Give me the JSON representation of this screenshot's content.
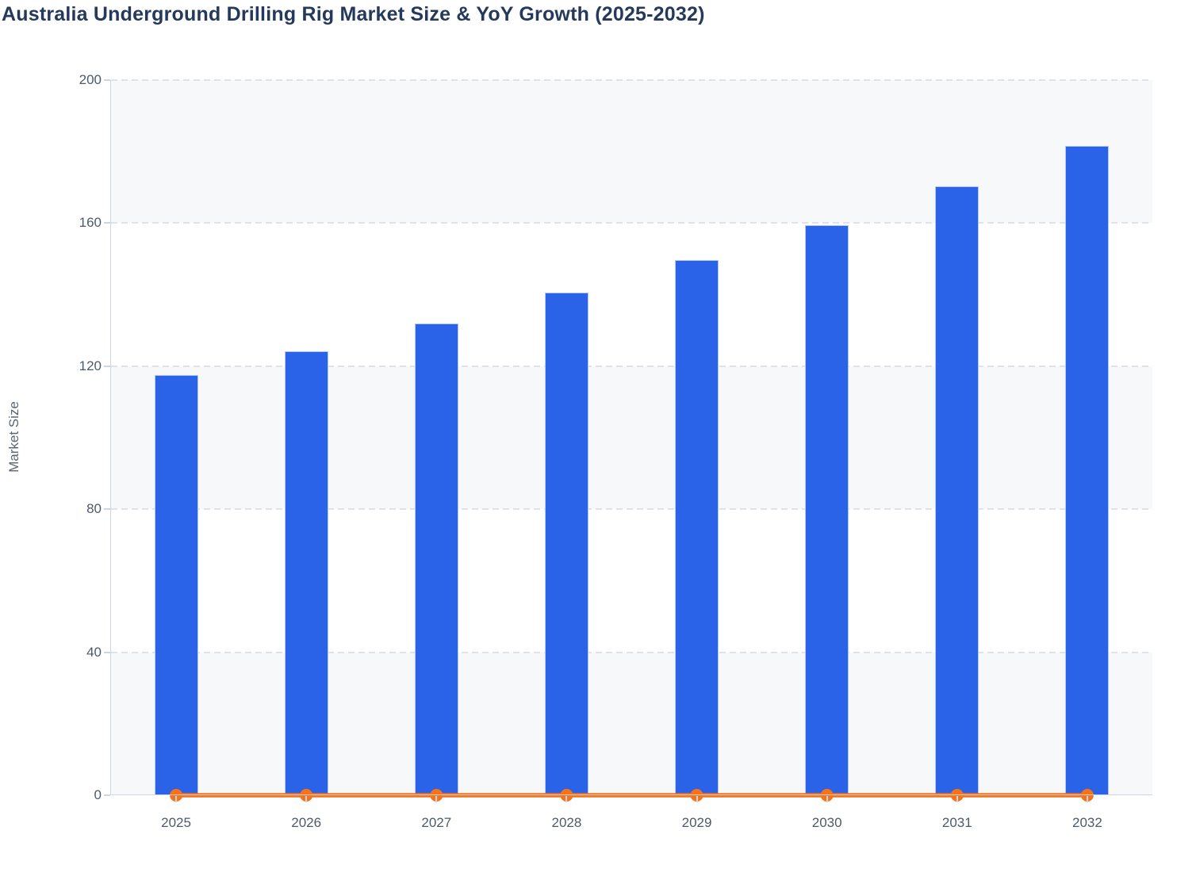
{
  "title": "Australia Underground Drilling Rig Market Size & YoY Growth (2025-2032)",
  "chart_data": {
    "type": "bar",
    "title": "Australia Underground Drilling Rig Market Size & YoY Growth (2025-2032)",
    "xlabel": "",
    "ylabel": "Market Size",
    "categories": [
      "2025",
      "2026",
      "2027",
      "2028",
      "2029",
      "2030",
      "2031",
      "2032"
    ],
    "series": [
      {
        "name": "Market Size",
        "type": "bar",
        "color": "#2a63e8",
        "values": [
          117.5,
          124.2,
          132.0,
          140.5,
          149.6,
          159.5,
          170.2,
          181.6
        ]
      },
      {
        "name": "YoY Growth",
        "type": "line",
        "color": "#f97316",
        "values": [
          0,
          0,
          0,
          0,
          0,
          0,
          0,
          0
        ]
      }
    ],
    "ylim": [
      0,
      200
    ],
    "yticks": [
      0,
      40,
      80,
      120,
      160,
      200
    ],
    "grid": "horizontal-dashed",
    "legend_position": "none",
    "plot_band_colors": [
      "#f7f8fa",
      "#ffffff"
    ]
  },
  "colors": {
    "bar_fill": "#2a63e8",
    "line_stroke": "#f97316",
    "title_text": "#24395b",
    "tick_text": "#4d5a6b",
    "axis_line": "#ccd6eb",
    "gridline": "#dfe2e8",
    "plot_band": "#f7f8fa",
    "background": "#ffffff"
  }
}
